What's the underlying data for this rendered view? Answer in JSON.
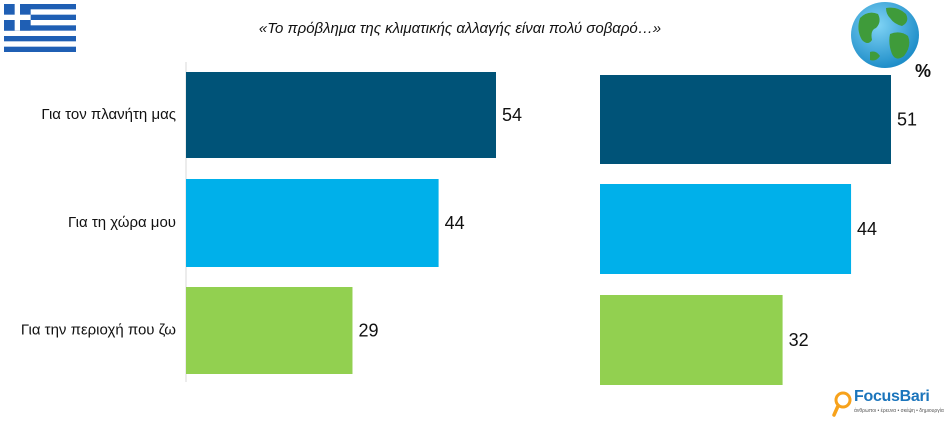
{
  "header": {
    "title": "«Το πρόβλημα της κλιματικής αλλαγής είναι πολύ σοβαρό…»",
    "percent_symbol": "%",
    "left_flag_icon": "greek-flag-icon",
    "right_icon": "globe-icon"
  },
  "brand": {
    "name": "FocusBari",
    "tagline": "άνθρωποι • έρευνα • σκέψη • δημιουργία",
    "icon": "magnifier-icon"
  },
  "colors": {
    "dark_blue": "#005378",
    "light_blue": "#00b0ea",
    "green": "#92d050"
  },
  "chart_data": [
    {
      "type": "bar",
      "orientation": "horizontal",
      "categories": [
        "Για τον πλανήτη μας",
        "Για τη χώρα μου",
        "Για την περιοχή που ζω"
      ],
      "values": [
        54,
        44,
        29
      ],
      "colors": [
        "#005378",
        "#00b0ea",
        "#92d050"
      ]
    },
    {
      "type": "bar",
      "orientation": "horizontal",
      "categories": [
        "Για τον πλανήτη μας",
        "Για τη χώρα μου",
        "Για την περιοχή που ζω"
      ],
      "values": [
        51,
        44,
        32
      ],
      "colors": [
        "#005378",
        "#00b0ea",
        "#92d050"
      ]
    }
  ]
}
